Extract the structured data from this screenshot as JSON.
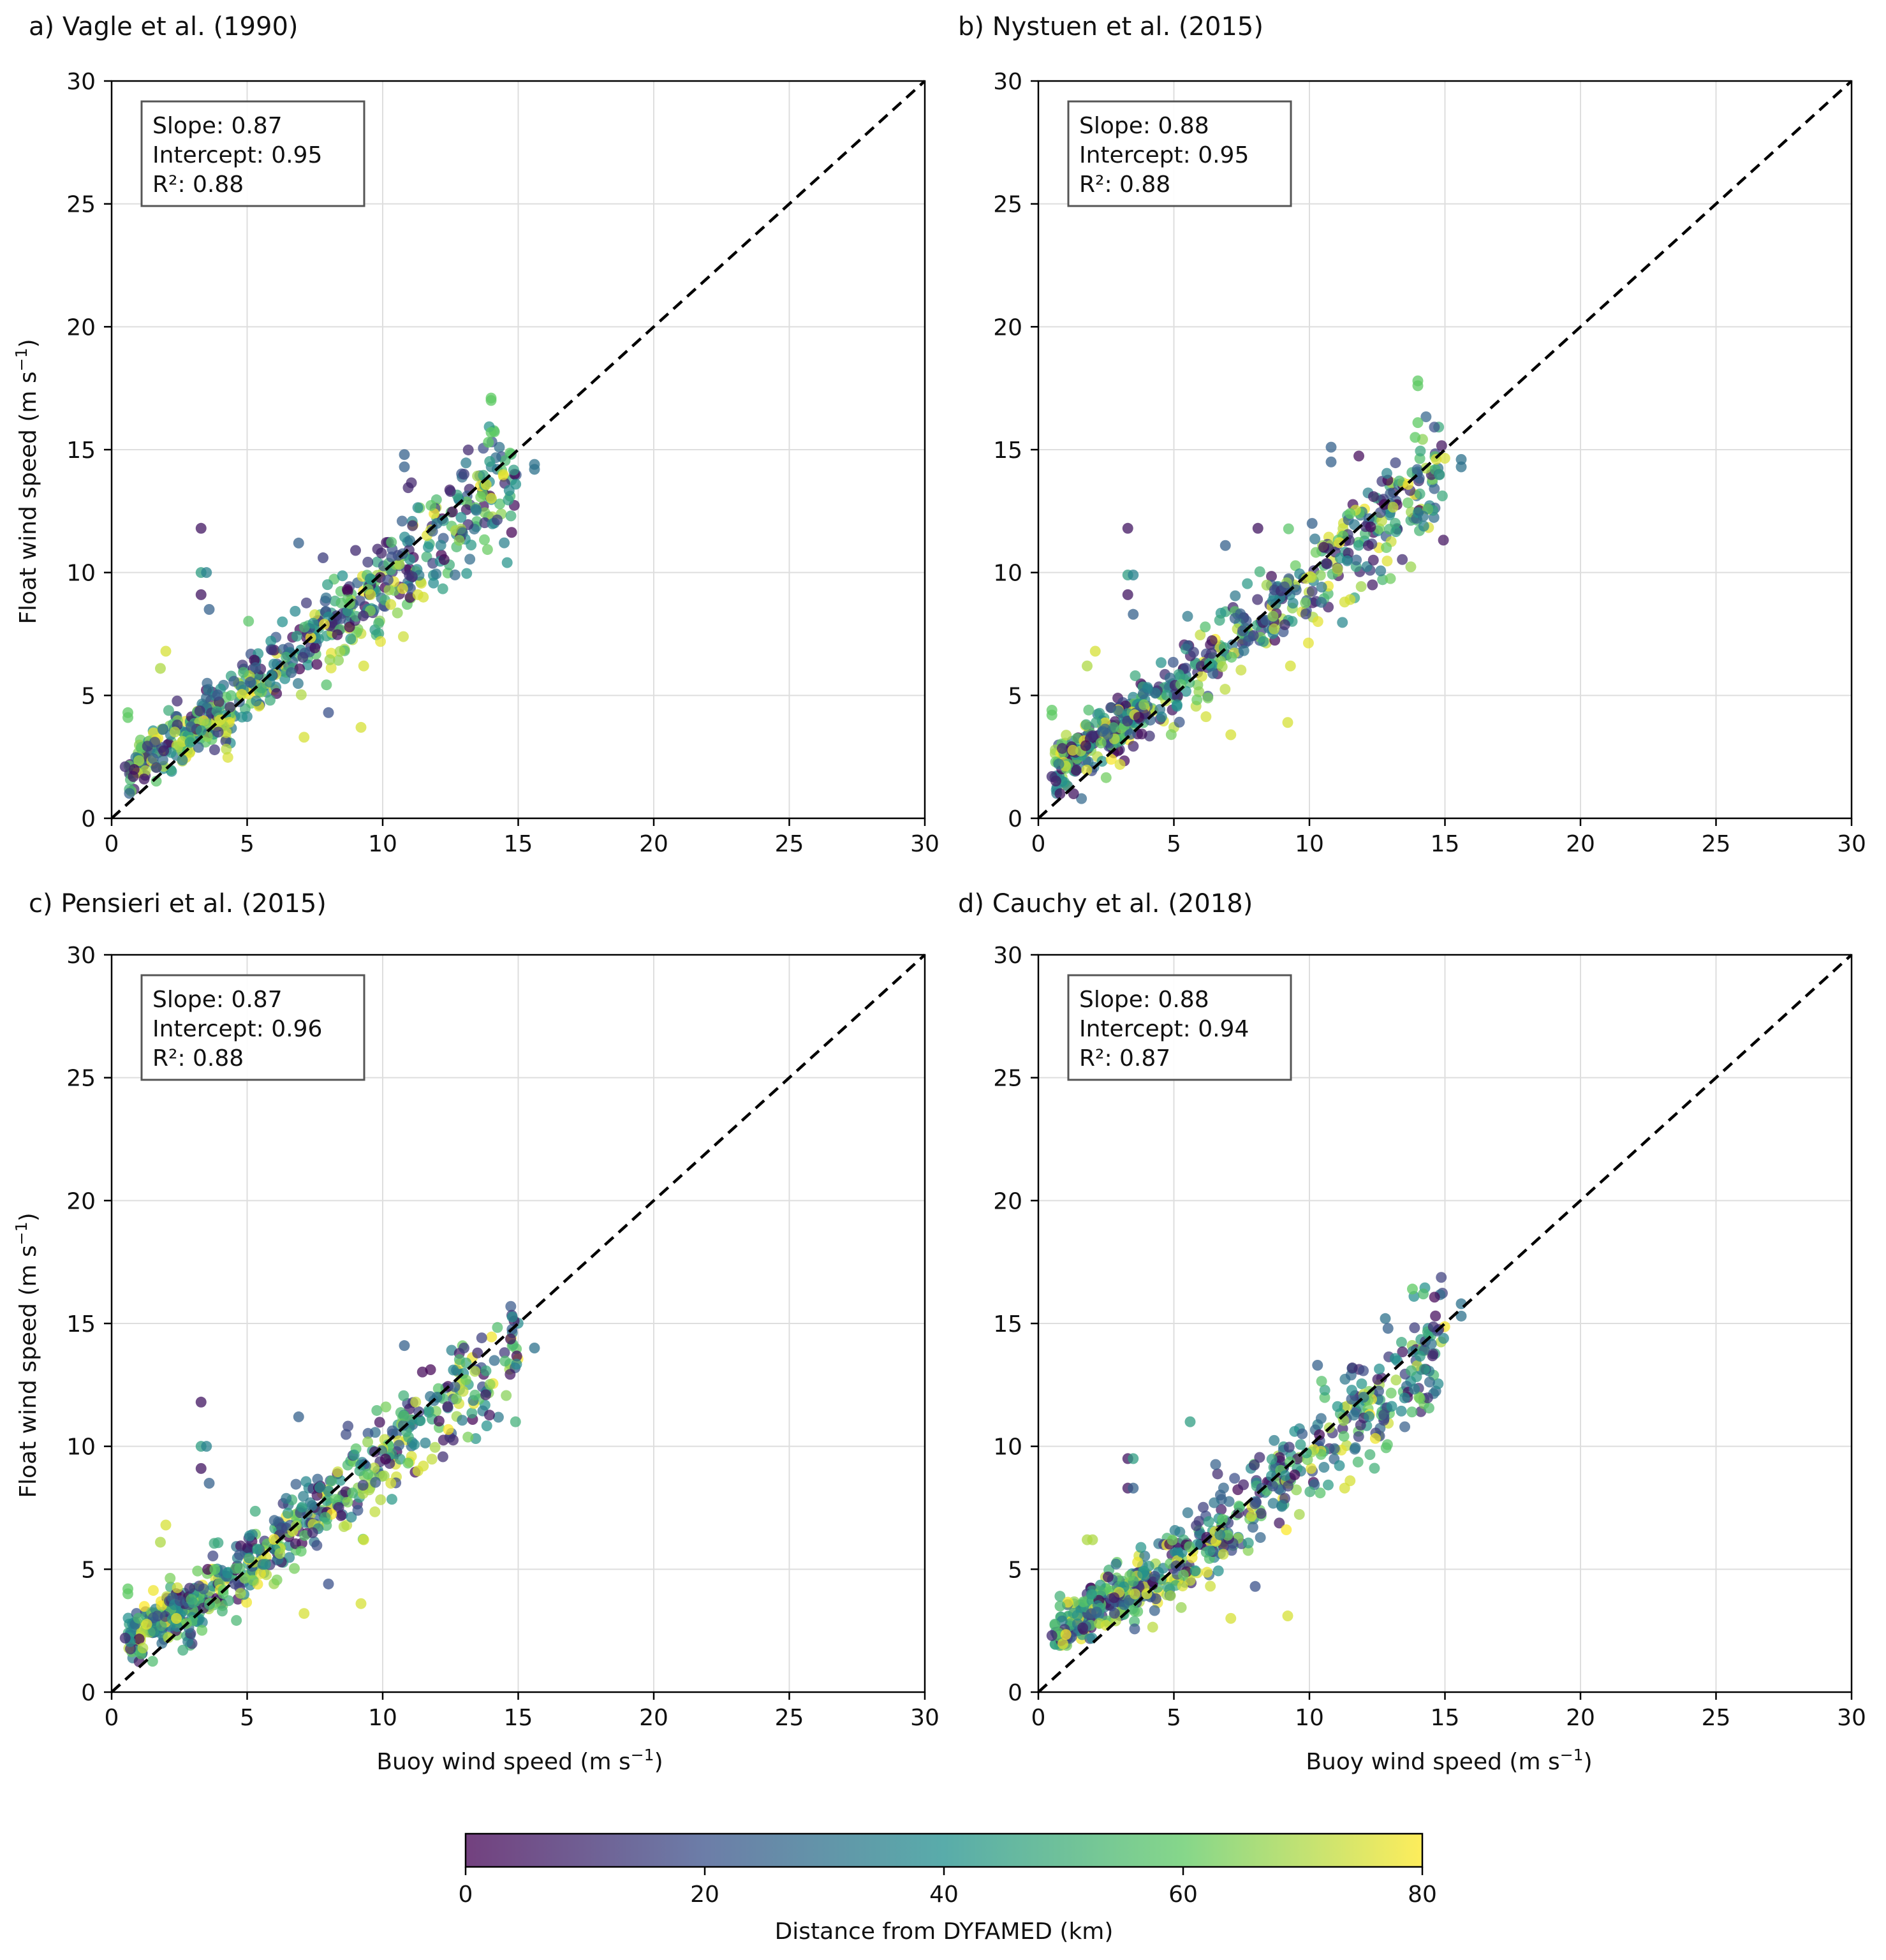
{
  "figure": {
    "panel_titles": [
      "a) Vagle et al. (1990)",
      "b) Nystuen et al. (2015)",
      "c) Pensieri et al. (2015)",
      "d) Cauchy et al. (2018)"
    ],
    "xlabel": "Buoy wind speed (m s",
    "ylabel": "Float wind speed (m s",
    "unit_exponent": "−1",
    "colorbar": {
      "label": "Distance from DYFAMED (km)",
      "ticks": [
        "0",
        "20",
        "40",
        "60",
        "80"
      ],
      "range": [
        0,
        80
      ],
      "colormap": "viridis",
      "colors": [
        "#440154",
        "#3b528b",
        "#21908d",
        "#5dc963",
        "#fde725"
      ]
    }
  },
  "chart_data": [
    {
      "type": "scatter",
      "title": "a) Vagle et al. (1990)",
      "xlabel": "",
      "ylabel": "Float wind speed (m s⁻¹)",
      "xlim": [
        0,
        30
      ],
      "ylim": [
        0,
        30
      ],
      "xticks": [
        "0",
        "5",
        "10",
        "15",
        "20",
        "25",
        "30"
      ],
      "yticks": [
        "0",
        "5",
        "10",
        "15",
        "20",
        "25",
        "30"
      ],
      "grid": true,
      "reference_line": "1:1 dashed",
      "stats": [
        "Slope: 0.87",
        "Intercept: 0.95",
        "R²: 0.88"
      ],
      "stats_placement": "top-left",
      "fit": {
        "slope": 0.87,
        "intercept": 0.95
      },
      "color_by": "Distance from DYFAMED (km)",
      "points": [
        [
          3.3,
          11.8,
          5
        ],
        [
          3.3,
          10.0,
          45
        ],
        [
          3.5,
          10.0,
          35
        ],
        [
          3.3,
          9.1,
          5
        ],
        [
          3.6,
          8.5,
          25
        ],
        [
          10.8,
          14.8,
          25
        ],
        [
          10.8,
          14.3,
          25
        ],
        [
          14.0,
          17.1,
          60
        ],
        [
          14.0,
          17.0,
          60
        ],
        [
          14.0,
          15.7,
          60
        ],
        [
          13.9,
          15.3,
          60
        ],
        [
          15.6,
          14.4,
          30
        ],
        [
          15.6,
          14.2,
          30
        ],
        [
          6.9,
          11.2,
          25
        ],
        [
          9.2,
          3.7,
          75
        ],
        [
          7.1,
          3.3,
          75
        ],
        [
          0.6,
          4.3,
          60
        ],
        [
          0.6,
          4.1,
          60
        ],
        [
          0.5,
          2.1,
          10
        ],
        [
          0.8,
          1.7,
          5
        ],
        [
          1.2,
          1.6,
          5
        ],
        [
          2.0,
          6.8,
          75
        ],
        [
          1.8,
          6.1,
          70
        ],
        [
          4.0,
          4.0,
          75
        ],
        [
          12.0,
          12.0,
          30
        ],
        [
          11.5,
          9.0,
          75
        ],
        [
          11.3,
          9.1,
          75
        ],
        [
          10.3,
          8.7,
          75
        ],
        [
          9.3,
          6.2,
          75
        ],
        [
          7.8,
          10.6,
          15
        ],
        [
          9.0,
          10.9,
          10
        ],
        [
          13.0,
          14.0,
          15
        ],
        [
          12.5,
          13.3,
          10
        ],
        [
          11.0,
          11.3,
          30
        ],
        [
          8.0,
          4.3,
          20
        ]
      ]
    },
    {
      "type": "scatter",
      "title": "b) Nystuen et al. (2015)",
      "xlabel": "",
      "ylabel": "",
      "xlim": [
        0,
        30
      ],
      "ylim": [
        0,
        30
      ],
      "xticks": [
        "0",
        "5",
        "10",
        "15",
        "20",
        "25",
        "30"
      ],
      "yticks": [
        "0",
        "5",
        "10",
        "15",
        "20",
        "25",
        "30"
      ],
      "grid": true,
      "reference_line": "1:1 dashed",
      "stats": [
        "Slope: 0.88",
        "Intercept: 0.95",
        "R²: 0.88"
      ],
      "stats_placement": "top-left",
      "fit": {
        "slope": 0.88,
        "intercept": 0.95
      },
      "color_by": "Distance from DYFAMED (km)",
      "points": [
        [
          3.3,
          11.8,
          5
        ],
        [
          3.3,
          9.9,
          45
        ],
        [
          3.5,
          9.9,
          35
        ],
        [
          3.3,
          9.1,
          5
        ],
        [
          3.5,
          8.3,
          25
        ],
        [
          10.8,
          15.1,
          25
        ],
        [
          10.8,
          14.5,
          25
        ],
        [
          14.0,
          17.8,
          60
        ],
        [
          14.0,
          17.6,
          60
        ],
        [
          14.0,
          16.1,
          60
        ],
        [
          13.9,
          15.5,
          60
        ],
        [
          15.6,
          14.6,
          30
        ],
        [
          15.6,
          14.3,
          30
        ],
        [
          6.9,
          11.1,
          25
        ],
        [
          9.2,
          3.9,
          75
        ],
        [
          7.1,
          3.4,
          75
        ],
        [
          0.5,
          4.4,
          60
        ],
        [
          0.5,
          4.2,
          60
        ],
        [
          0.5,
          1.7,
          10
        ],
        [
          0.8,
          1.0,
          5
        ],
        [
          1.3,
          1.0,
          5
        ],
        [
          2.1,
          6.8,
          75
        ],
        [
          1.8,
          6.2,
          70
        ],
        [
          8.1,
          11.8,
          5
        ],
        [
          10.1,
          12.0,
          25
        ],
        [
          11.5,
          12.4,
          60
        ],
        [
          11.5,
          8.9,
          75
        ],
        [
          11.3,
          8.8,
          75
        ],
        [
          9.3,
          6.2,
          75
        ]
      ]
    },
    {
      "type": "scatter",
      "title": "c) Pensieri et al. (2015)",
      "xlabel": "Buoy wind speed (m s⁻¹)",
      "ylabel": "Float wind speed (m s⁻¹)",
      "xlim": [
        0,
        30
      ],
      "ylim": [
        0,
        30
      ],
      "xticks": [
        "0",
        "5",
        "10",
        "15",
        "20",
        "25",
        "30"
      ],
      "yticks": [
        "0",
        "5",
        "10",
        "15",
        "20",
        "25",
        "30"
      ],
      "grid": true,
      "reference_line": "1:1 dashed",
      "stats": [
        "Slope: 0.87",
        "Intercept: 0.96",
        "R²: 0.88"
      ],
      "stats_placement": "top-left",
      "fit": {
        "slope": 0.87,
        "intercept": 0.96
      },
      "color_by": "Distance from DYFAMED (km)",
      "points": [
        [
          3.3,
          11.8,
          5
        ],
        [
          3.3,
          10.0,
          45
        ],
        [
          3.5,
          10.0,
          35
        ],
        [
          3.3,
          9.1,
          5
        ],
        [
          3.6,
          8.5,
          25
        ],
        [
          10.8,
          14.1,
          25
        ],
        [
          15.6,
          14.0,
          30
        ],
        [
          13.0,
          14.0,
          15
        ],
        [
          13.5,
          13.8,
          10
        ],
        [
          6.9,
          11.2,
          25
        ],
        [
          9.2,
          3.6,
          75
        ],
        [
          7.1,
          3.2,
          75
        ],
        [
          0.6,
          4.2,
          60
        ],
        [
          0.6,
          4.0,
          60
        ],
        [
          0.5,
          2.2,
          10
        ],
        [
          2.0,
          6.8,
          75
        ],
        [
          1.8,
          6.1,
          70
        ],
        [
          11.5,
          9.2,
          75
        ],
        [
          11.3,
          9.0,
          75
        ],
        [
          10.3,
          8.5,
          75
        ],
        [
          9.3,
          6.2,
          75
        ],
        [
          8.0,
          4.4,
          20
        ],
        [
          12.0,
          12.0,
          30
        ]
      ]
    },
    {
      "type": "scatter",
      "title": "d) Cauchy et al. (2018)",
      "xlabel": "Buoy wind speed (m s⁻¹)",
      "ylabel": "",
      "xlim": [
        0,
        30
      ],
      "ylim": [
        0,
        30
      ],
      "xticks": [
        "0",
        "5",
        "10",
        "15",
        "20",
        "25",
        "30"
      ],
      "yticks": [
        "0",
        "5",
        "10",
        "15",
        "20",
        "25",
        "30"
      ],
      "grid": true,
      "reference_line": "1:1 dashed",
      "stats": [
        "Slope: 0.88",
        "Intercept: 0.94",
        "R²: 0.87"
      ],
      "stats_placement": "top-left",
      "fit": {
        "slope": 0.88,
        "intercept": 0.94
      },
      "color_by": "Distance from DYFAMED (km)",
      "points": [
        [
          13.8,
          16.4,
          60
        ],
        [
          14.2,
          16.2,
          55
        ],
        [
          15.6,
          15.8,
          30
        ],
        [
          15.6,
          15.3,
          30
        ],
        [
          12.8,
          15.2,
          30
        ],
        [
          12.9,
          14.8,
          25
        ],
        [
          5.6,
          11.0,
          45
        ],
        [
          3.3,
          9.5,
          5
        ],
        [
          3.5,
          9.5,
          45
        ],
        [
          3.3,
          8.3,
          5
        ],
        [
          3.5,
          8.3,
          25
        ],
        [
          10.3,
          13.3,
          25
        ],
        [
          9.2,
          3.1,
          75
        ],
        [
          7.1,
          3.0,
          75
        ],
        [
          0.5,
          2.3,
          10
        ],
        [
          0.8,
          3.5,
          55
        ],
        [
          1.8,
          6.2,
          70
        ],
        [
          2.0,
          6.2,
          70
        ],
        [
          11.5,
          8.6,
          75
        ],
        [
          11.3,
          8.3,
          75
        ],
        [
          12.0,
          12.0,
          30
        ],
        [
          8.0,
          4.3,
          20
        ],
        [
          6.7,
          6.4,
          35
        ],
        [
          4.0,
          4.0,
          75
        ]
      ]
    }
  ]
}
